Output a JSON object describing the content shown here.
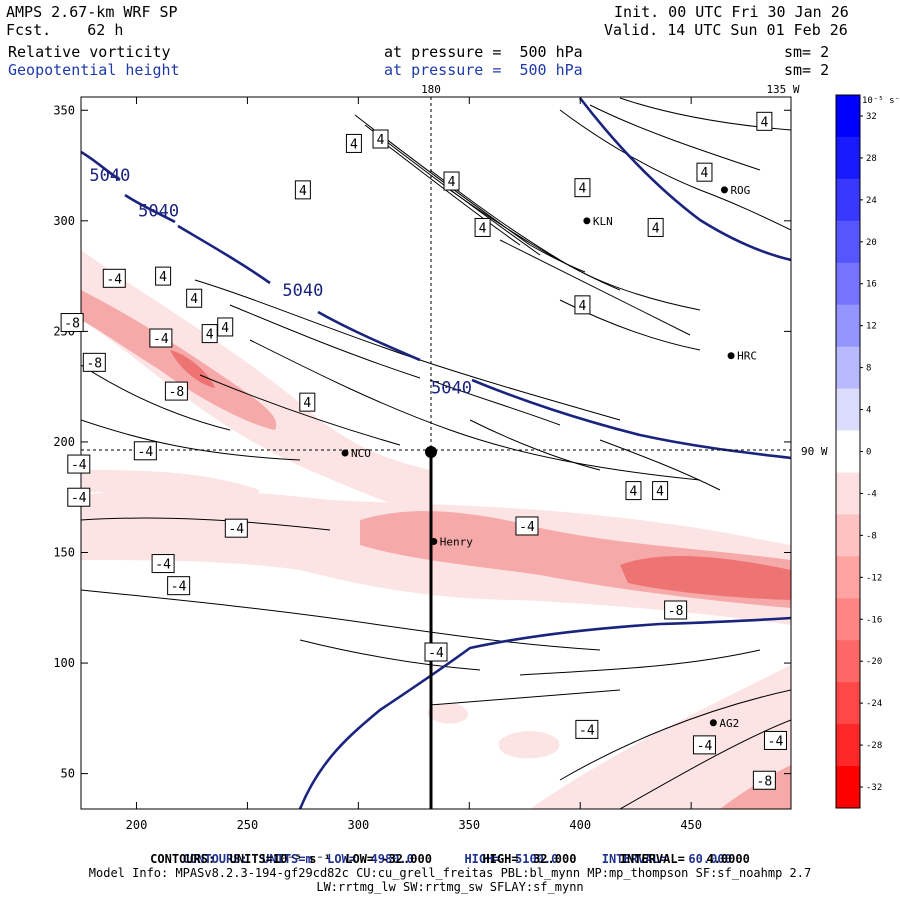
{
  "header": {
    "title": "AMPS 2.67-km WRF SP",
    "forecast": "Fcst.    62 h",
    "init": "Init. 00 UTC Fri 30 Jan 26",
    "valid": "Valid. 14 UTC Sun 01 Feb 26",
    "field1_name": "Relative vorticity",
    "field1_level": "at pressure =  500 hPa",
    "field1_sm": "sm= 2",
    "field2_name": "Geopotential height",
    "field2_level": "at pressure =  500 hPa",
    "field2_sm": "sm= 2"
  },
  "footer": {
    "line1_a": "CONTOURS:  UNITS=m  LOW=  4980.0",
    "line1_b": "HIGH=  5100.0",
    "line1_c": "INTERVAL=   60.000",
    "line2": "CONTOURS:  UNITS=10⁻⁵ s⁻¹  LOW= -32.000       HIGH=  32.000      INTERVAL=   4.0000",
    "line3": "Model Info: MPASv8.2.3-194-gf29cd82c CU:cu_grell_freitas PBL:bl_mynn MP:mp_thompson SF:sf_noahmp 2.7",
    "line4": "LW:rrtmg_lw SW:rrtmg_sw SFLAY:sf_mynn"
  },
  "colors": {
    "height_contour": "#1a237e",
    "vorticity_contour": "#000000",
    "pale_pink": "#fde4e4",
    "mid_pink": "#f6a9a9",
    "deep_pink": "#ee7474"
  },
  "chart_data": {
    "type": "contour-map",
    "x_range": [
      175,
      495
    ],
    "y_range": [
      34,
      356
    ],
    "x_ticks": [
      200,
      250,
      300,
      350,
      400,
      450
    ],
    "y_ticks": [
      50,
      100,
      150,
      200,
      250,
      300,
      350
    ],
    "meridians": [
      {
        "label": "180",
        "x": 334
      },
      {
        "label": "135 W",
        "x": 495
      },
      {
        "label": "90 W",
        "y": 196
      }
    ],
    "height_labels": [
      {
        "text": "5040",
        "x": 188,
        "y": 318
      },
      {
        "text": "5040",
        "x": 210,
        "y": 302
      },
      {
        "text": "5040",
        "x": 275,
        "y": 266
      },
      {
        "text": "5040",
        "x": 342,
        "y": 222
      }
    ],
    "vorticity_labels": [
      {
        "text": "4",
        "x": 298,
        "y": 335
      },
      {
        "text": "4",
        "x": 310,
        "y": 337
      },
      {
        "text": "4",
        "x": 275,
        "y": 314
      },
      {
        "text": "4",
        "x": 342,
        "y": 318
      },
      {
        "text": "4",
        "x": 356,
        "y": 297
      },
      {
        "text": "4",
        "x": 401,
        "y": 315
      },
      {
        "text": "4",
        "x": 434,
        "y": 297
      },
      {
        "text": "4",
        "x": 456,
        "y": 322
      },
      {
        "text": "4",
        "x": 483,
        "y": 345
      },
      {
        "text": "4",
        "x": 401,
        "y": 262
      },
      {
        "text": "4",
        "x": 212,
        "y": 275
      },
      {
        "text": "4",
        "x": 226,
        "y": 265
      },
      {
        "text": "4",
        "x": 233,
        "y": 249
      },
      {
        "text": "4",
        "x": 240,
        "y": 252
      },
      {
        "text": "4",
        "x": 277,
        "y": 218
      },
      {
        "text": "4",
        "x": 424,
        "y": 178
      },
      {
        "text": "4",
        "x": 436,
        "y": 178
      },
      {
        "text": "-4",
        "x": 190,
        "y": 274
      },
      {
        "text": "-4",
        "x": 211,
        "y": 247
      },
      {
        "text": "-4",
        "x": 204,
        "y": 196
      },
      {
        "text": "-4",
        "x": 174,
        "y": 190
      },
      {
        "text": "-4",
        "x": 174,
        "y": 175
      },
      {
        "text": "-4",
        "x": 245,
        "y": 161
      },
      {
        "text": "-4",
        "x": 212,
        "y": 145
      },
      {
        "text": "-4",
        "x": 219,
        "y": 135
      },
      {
        "text": "-4",
        "x": 376,
        "y": 162
      },
      {
        "text": "-4",
        "x": 335,
        "y": 105
      },
      {
        "text": "-4",
        "x": 403,
        "y": 70
      },
      {
        "text": "-4",
        "x": 456,
        "y": 63
      },
      {
        "text": "-4",
        "x": 488,
        "y": 65
      },
      {
        "text": "-8",
        "x": 171,
        "y": 254
      },
      {
        "text": "-8",
        "x": 181,
        "y": 236
      },
      {
        "text": "-8",
        "x": 218,
        "y": 223
      },
      {
        "text": "-8",
        "x": 443,
        "y": 124
      },
      {
        "text": "-8",
        "x": 483,
        "y": 47
      }
    ],
    "stations": [
      {
        "name": "ROG",
        "x": 465,
        "y": 314
      },
      {
        "name": "KLN",
        "x": 403,
        "y": 300
      },
      {
        "name": "HRC",
        "x": 468,
        "y": 239
      },
      {
        "name": "NCO",
        "x": 294,
        "y": 195
      },
      {
        "name": "Henry",
        "x": 334,
        "y": 155
      },
      {
        "name": "AG2",
        "x": 460,
        "y": 73
      }
    ],
    "colorbar": {
      "unit_label": "10⁻⁵ s⁻¹",
      "levels": [
        32,
        28,
        24,
        20,
        16,
        12,
        8,
        4,
        0,
        -4,
        -8,
        -12,
        -16,
        -20,
        -24,
        -28,
        -32
      ],
      "tick_labels": [
        "32",
        "28",
        "24",
        "20",
        "16",
        "12",
        "8",
        "4",
        "0",
        "-4",
        "-8",
        "-12",
        "-16",
        "-20",
        "-24",
        "-28",
        "-32"
      ],
      "colors": [
        "#0000ff",
        "#1a1aff",
        "#3838ff",
        "#5656ff",
        "#7474ff",
        "#9595ff",
        "#b8b8ff",
        "#dcdcff",
        "#ffffff",
        "#ffe0e0",
        "#ffc2c2",
        "#ffa3a3",
        "#ff8585",
        "#ff6666",
        "#ff4747",
        "#ff2828",
        "#ff0000"
      ]
    }
  }
}
